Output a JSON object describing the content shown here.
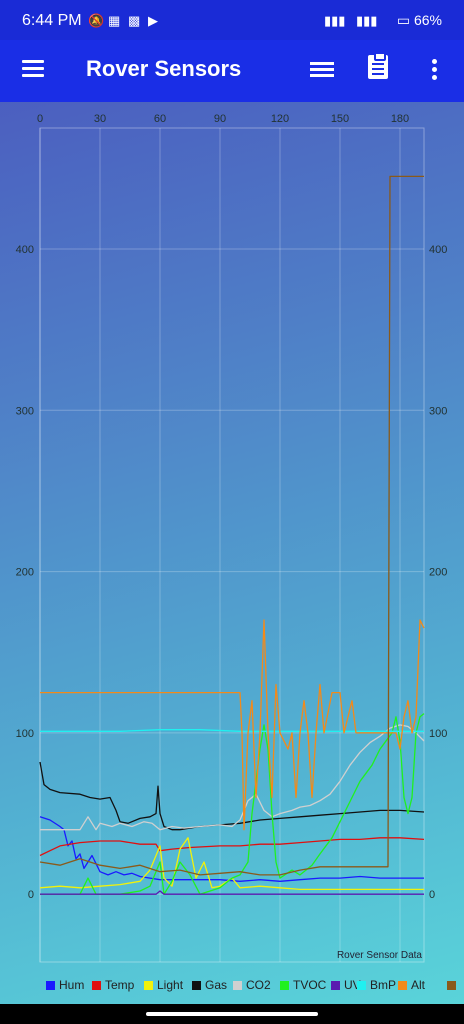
{
  "status_bar": {
    "time": "6:44 PM",
    "battery": "66%"
  },
  "app_bar": {
    "title": "Rover Sensors"
  },
  "chart_data": {
    "type": "line",
    "description_label": "Rover Sensor Data",
    "xlim": [
      0,
      192
    ],
    "ylim": [
      -42,
      475
    ],
    "x_ticks": [
      0,
      30,
      60,
      90,
      120,
      150,
      180
    ],
    "y_ticks": [
      0,
      100,
      200,
      300,
      400
    ],
    "grid": true,
    "legend_position": "bottom",
    "series": [
      {
        "name": "Hum",
        "color": "#1a1aff",
        "points": [
          [
            0,
            48
          ],
          [
            5,
            46
          ],
          [
            10,
            42
          ],
          [
            12,
            40
          ],
          [
            14,
            30
          ],
          [
            16,
            33
          ],
          [
            18,
            22
          ],
          [
            20,
            25
          ],
          [
            22,
            16
          ],
          [
            26,
            24
          ],
          [
            30,
            14
          ],
          [
            34,
            12
          ],
          [
            38,
            14
          ],
          [
            42,
            12
          ],
          [
            46,
            13
          ],
          [
            50,
            11
          ],
          [
            55,
            10
          ],
          [
            60,
            9
          ],
          [
            70,
            9
          ],
          [
            80,
            9
          ],
          [
            90,
            9
          ],
          [
            100,
            8
          ],
          [
            110,
            9
          ],
          [
            120,
            8
          ],
          [
            130,
            9
          ],
          [
            140,
            10
          ],
          [
            150,
            10
          ],
          [
            160,
            11
          ],
          [
            170,
            10
          ],
          [
            180,
            10
          ],
          [
            192,
            10
          ]
        ]
      },
      {
        "name": "Temp",
        "color": "#e01010",
        "points": [
          [
            0,
            24
          ],
          [
            5,
            27
          ],
          [
            10,
            30
          ],
          [
            20,
            32
          ],
          [
            30,
            33
          ],
          [
            40,
            33
          ],
          [
            50,
            31
          ],
          [
            58,
            31
          ],
          [
            60,
            27
          ],
          [
            66,
            28
          ],
          [
            75,
            29
          ],
          [
            90,
            30
          ],
          [
            100,
            30
          ],
          [
            110,
            31
          ],
          [
            120,
            31
          ],
          [
            130,
            32
          ],
          [
            140,
            33
          ],
          [
            150,
            34
          ],
          [
            160,
            34
          ],
          [
            170,
            35
          ],
          [
            180,
            35
          ],
          [
            192,
            34
          ]
        ]
      },
      {
        "name": "Light",
        "color": "#f2f20a",
        "points": [
          [
            0,
            4
          ],
          [
            10,
            5
          ],
          [
            20,
            4
          ],
          [
            30,
            5
          ],
          [
            40,
            6
          ],
          [
            50,
            8
          ],
          [
            55,
            15
          ],
          [
            60,
            30
          ],
          [
            62,
            10
          ],
          [
            66,
            5
          ],
          [
            70,
            28
          ],
          [
            74,
            35
          ],
          [
            78,
            10
          ],
          [
            82,
            20
          ],
          [
            86,
            4
          ],
          [
            90,
            5
          ],
          [
            96,
            10
          ],
          [
            100,
            4
          ],
          [
            110,
            5
          ],
          [
            120,
            4
          ],
          [
            130,
            3
          ],
          [
            140,
            3
          ],
          [
            150,
            3
          ],
          [
            160,
            3
          ],
          [
            170,
            3
          ],
          [
            180,
            3
          ],
          [
            192,
            3
          ]
        ]
      },
      {
        "name": "Gas",
        "color": "#111111",
        "points": [
          [
            0,
            82
          ],
          [
            2,
            68
          ],
          [
            5,
            65
          ],
          [
            10,
            63
          ],
          [
            20,
            62
          ],
          [
            25,
            60
          ],
          [
            30,
            59
          ],
          [
            35,
            60
          ],
          [
            38,
            52
          ],
          [
            40,
            45
          ],
          [
            44,
            44
          ],
          [
            50,
            47
          ],
          [
            55,
            48
          ],
          [
            58,
            50
          ],
          [
            59,
            67
          ],
          [
            60,
            50
          ],
          [
            62,
            42
          ],
          [
            66,
            40
          ],
          [
            70,
            40
          ],
          [
            80,
            42
          ],
          [
            90,
            43
          ],
          [
            100,
            44
          ],
          [
            110,
            46
          ],
          [
            120,
            47
          ],
          [
            130,
            48
          ],
          [
            140,
            49
          ],
          [
            150,
            50
          ],
          [
            160,
            51
          ],
          [
            170,
            52
          ],
          [
            180,
            52
          ],
          [
            192,
            51
          ]
        ]
      },
      {
        "name": "CO2",
        "color": "#d0d0d0",
        "points": [
          [
            0,
            40
          ],
          [
            10,
            40
          ],
          [
            20,
            40
          ],
          [
            24,
            48
          ],
          [
            28,
            40
          ],
          [
            30,
            44
          ],
          [
            36,
            42
          ],
          [
            40,
            44
          ],
          [
            46,
            42
          ],
          [
            52,
            45
          ],
          [
            56,
            44
          ],
          [
            60,
            40
          ],
          [
            66,
            42
          ],
          [
            72,
            41
          ],
          [
            80,
            42
          ],
          [
            90,
            43
          ],
          [
            96,
            42
          ],
          [
            100,
            46
          ],
          [
            104,
            58
          ],
          [
            108,
            62
          ],
          [
            112,
            52
          ],
          [
            116,
            48
          ],
          [
            120,
            50
          ],
          [
            126,
            52
          ],
          [
            130,
            54
          ],
          [
            135,
            55
          ],
          [
            140,
            58
          ],
          [
            145,
            62
          ],
          [
            150,
            70
          ],
          [
            155,
            80
          ],
          [
            160,
            88
          ],
          [
            165,
            94
          ],
          [
            170,
            98
          ],
          [
            175,
            103
          ],
          [
            180,
            105
          ],
          [
            184,
            104
          ],
          [
            188,
            100
          ],
          [
            192,
            95
          ]
        ]
      },
      {
        "name": "TVOC",
        "color": "#20f020",
        "points": [
          [
            0,
            0
          ],
          [
            20,
            0
          ],
          [
            24,
            10
          ],
          [
            28,
            0
          ],
          [
            40,
            0
          ],
          [
            50,
            2
          ],
          [
            55,
            5
          ],
          [
            60,
            20
          ],
          [
            62,
            0
          ],
          [
            66,
            8
          ],
          [
            70,
            20
          ],
          [
            75,
            12
          ],
          [
            80,
            0
          ],
          [
            90,
            4
          ],
          [
            96,
            10
          ],
          [
            100,
            12
          ],
          [
            104,
            20
          ],
          [
            106,
            50
          ],
          [
            110,
            90
          ],
          [
            112,
            105
          ],
          [
            114,
            90
          ],
          [
            116,
            50
          ],
          [
            118,
            20
          ],
          [
            120,
            10
          ],
          [
            126,
            15
          ],
          [
            130,
            12
          ],
          [
            136,
            18
          ],
          [
            140,
            25
          ],
          [
            146,
            35
          ],
          [
            150,
            45
          ],
          [
            156,
            60
          ],
          [
            160,
            70
          ],
          [
            166,
            80
          ],
          [
            170,
            90
          ],
          [
            176,
            100
          ],
          [
            178,
            110
          ],
          [
            180,
            95
          ],
          [
            182,
            60
          ],
          [
            184,
            50
          ],
          [
            186,
            60
          ],
          [
            188,
            100
          ],
          [
            190,
            110
          ],
          [
            192,
            112
          ]
        ]
      },
      {
        "name": "UV",
        "color": "#5a1ab0",
        "points": [
          [
            0,
            0
          ],
          [
            20,
            0
          ],
          [
            40,
            0
          ],
          [
            58,
            0
          ],
          [
            60,
            2
          ],
          [
            62,
            0
          ],
          [
            100,
            0
          ],
          [
            130,
            0
          ],
          [
            160,
            0
          ],
          [
            192,
            0
          ]
        ]
      },
      {
        "name": "BmP",
        "color": "#20f0f0",
        "points": [
          [
            0,
            101
          ],
          [
            20,
            101
          ],
          [
            40,
            101
          ],
          [
            60,
            102
          ],
          [
            80,
            102
          ],
          [
            100,
            101
          ],
          [
            120,
            101
          ],
          [
            140,
            101
          ],
          [
            160,
            101
          ],
          [
            180,
            101
          ],
          [
            192,
            101
          ]
        ]
      },
      {
        "name": "Alt",
        "color": "#f28a1a",
        "points": [
          [
            0,
            125
          ],
          [
            20,
            125
          ],
          [
            40,
            125
          ],
          [
            60,
            125
          ],
          [
            80,
            125
          ],
          [
            100,
            125
          ],
          [
            101,
            100
          ],
          [
            102,
            40
          ],
          [
            104,
            100
          ],
          [
            106,
            120
          ],
          [
            108,
            60
          ],
          [
            110,
            100
          ],
          [
            112,
            170
          ],
          [
            114,
            100
          ],
          [
            116,
            60
          ],
          [
            118,
            130
          ],
          [
            120,
            100
          ],
          [
            124,
            90
          ],
          [
            126,
            100
          ],
          [
            128,
            60
          ],
          [
            130,
            100
          ],
          [
            132,
            120
          ],
          [
            134,
            100
          ],
          [
            136,
            60
          ],
          [
            138,
            100
          ],
          [
            140,
            130
          ],
          [
            142,
            100
          ],
          [
            146,
            125
          ],
          [
            150,
            125
          ],
          [
            152,
            100
          ],
          [
            154,
            110
          ],
          [
            156,
            120
          ],
          [
            158,
            100
          ],
          [
            160,
            100
          ],
          [
            165,
            100
          ],
          [
            170,
            100
          ],
          [
            175,
            100
          ],
          [
            178,
            100
          ],
          [
            180,
            90
          ],
          [
            182,
            110
          ],
          [
            184,
            120
          ],
          [
            186,
            100
          ],
          [
            188,
            110
          ],
          [
            190,
            170
          ],
          [
            192,
            165
          ]
        ]
      },
      {
        "name": "",
        "color": "#8a5a1a",
        "points": [
          [
            0,
            20
          ],
          [
            10,
            18
          ],
          [
            20,
            22
          ],
          [
            30,
            18
          ],
          [
            40,
            16
          ],
          [
            50,
            18
          ],
          [
            60,
            14
          ],
          [
            70,
            15
          ],
          [
            80,
            12
          ],
          [
            90,
            13
          ],
          [
            100,
            14
          ],
          [
            110,
            12
          ],
          [
            120,
            12
          ],
          [
            130,
            15
          ],
          [
            140,
            17
          ],
          [
            150,
            17
          ],
          [
            160,
            17
          ],
          [
            170,
            17
          ],
          [
            174,
            17
          ],
          [
            175,
            445
          ],
          [
            192,
            445
          ]
        ]
      }
    ]
  }
}
